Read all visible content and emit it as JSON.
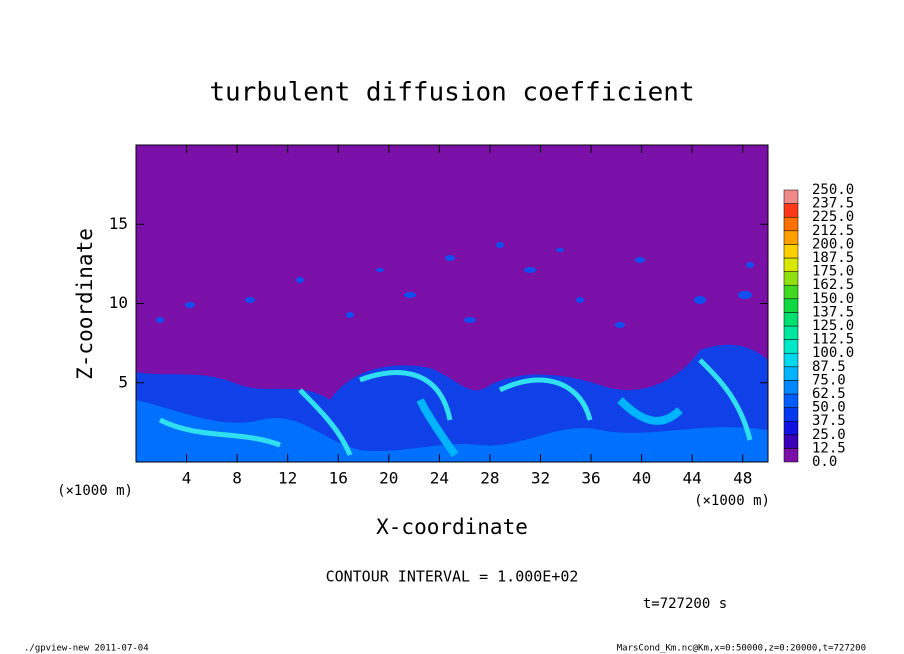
{
  "chart_data": {
    "type": "contour",
    "title": "turbulent diffusion coefficient",
    "xlabel": "X-coordinate",
    "ylabel": "Z-coordinate",
    "x_unit": "(×1000 m)",
    "xlim": [
      0,
      50
    ],
    "ylim": [
      0,
      20
    ],
    "xticks": [
      4,
      8,
      12,
      16,
      20,
      24,
      28,
      32,
      36,
      40,
      44,
      48
    ],
    "yticks": [
      5,
      10,
      15
    ],
    "colorbar": {
      "levels": [
        {
          "value": 0,
          "label": "0.0"
        },
        {
          "value": 12.5,
          "label": "12.5"
        },
        {
          "value": 25,
          "label": "25.0"
        },
        {
          "value": 37.5,
          "label": "37.5"
        },
        {
          "value": 50,
          "label": "50.0"
        },
        {
          "value": 62.5,
          "label": "62.5"
        },
        {
          "value": 75,
          "label": "75.0"
        },
        {
          "value": 87.5,
          "label": "87.5"
        },
        {
          "value": 100,
          "label": "100.0"
        },
        {
          "value": 112.5,
          "label": "112.5"
        },
        {
          "value": 125,
          "label": "125.0"
        },
        {
          "value": 137.5,
          "label": "137.5"
        },
        {
          "value": 150,
          "label": "150.0"
        },
        {
          "value": 162.5,
          "label": "162.5"
        },
        {
          "value": 175,
          "label": "175.0"
        },
        {
          "value": 187.5,
          "label": "187.5"
        },
        {
          "value": 200,
          "label": "200.0"
        },
        {
          "value": 212.5,
          "label": "212.5"
        },
        {
          "value": 225,
          "label": "225.0"
        },
        {
          "value": 237.5,
          "label": "237.5"
        },
        {
          "value": 250,
          "label": "250.0"
        }
      ],
      "colors": [
        "#7a10a8",
        "#3a00b8",
        "#1010e0",
        "#0038f0",
        "#005cff",
        "#0088ff",
        "#00b4ff",
        "#00d8f0",
        "#00e8c8",
        "#00e8a0",
        "#00e070",
        "#10d840",
        "#40d820",
        "#90e010",
        "#d8e800",
        "#ffd000",
        "#ffa000",
        "#ff7000",
        "#ff3818",
        "#f08888"
      ]
    },
    "annotations": {
      "contour_interval": "CONTOUR INTERVAL = 1.000E+02",
      "time": "t=727200 s",
      "footer_left": "./gpview-new  2011-07-04",
      "footer_right": "MarsCond_Km.nc@Km,x=0:50000,z=0:20000,t=727200"
    }
  }
}
